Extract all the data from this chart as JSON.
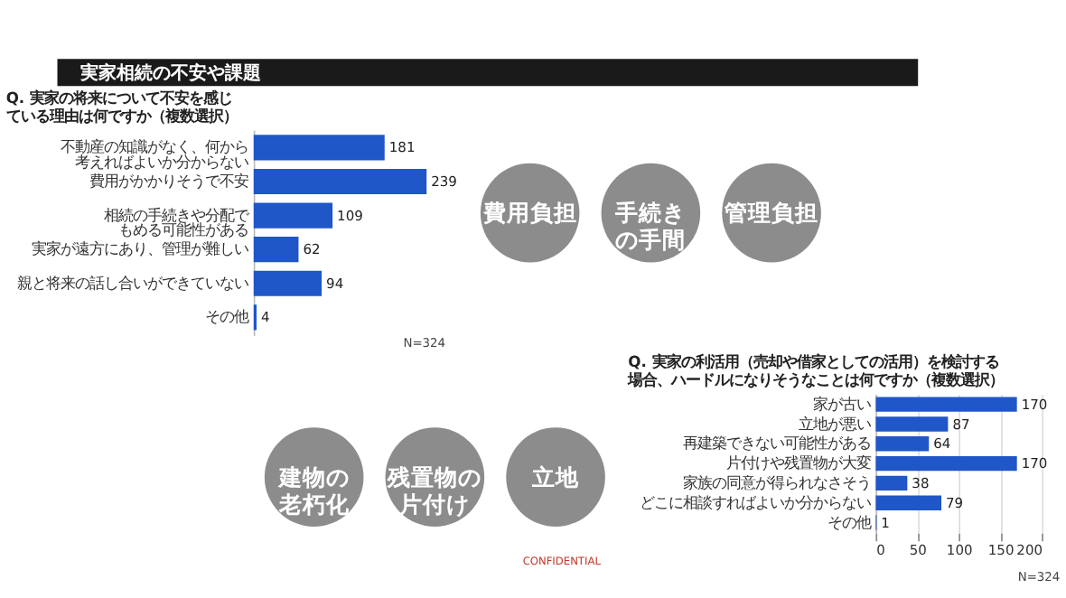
{
  "chart_data": [
    {
      "type": "other",
      "title": "実家相続の不安や課題",
      "annotations": [
        "費用負担",
        "手続きの手間",
        "管理負担",
        "建物の老朽化",
        "残置物の片付け",
        "立地",
        "CONFIDENTIAL"
      ]
    },
    {
      "type": "bar",
      "orientation": "horizontal",
      "title": "Q. 実家の将来について不安を感じている理由は何ですか（複数選択）",
      "categories": [
        "不動産の知識がなく、何から考えればよいか分からない",
        "費用がかかりそうで不安",
        "相続の手続きや分配でもめる可能性がある",
        "実家が遠方にあり、管理が難しい",
        "親と将来の話し合いができていない",
        "その他"
      ],
      "values": [
        181,
        239,
        109,
        62,
        94,
        4
      ],
      "color": "#1f56c8",
      "data_labels": true,
      "tick_labels": "y",
      "annotations": [
        "N=324"
      ]
    },
    {
      "type": "bar",
      "orientation": "horizontal",
      "title": "Q. 実家の利活用（売却や借家としての活用）を検討する場合、ハードルになりそうなことは何ですか（複数選択）",
      "categories": [
        "家が古い",
        "立地が悪い",
        "再建築できない可能性がある",
        "片付けや残置物が大変",
        "家族の同意が得られなさそう",
        "どこに相談すればよいか分からない",
        "その他"
      ],
      "values": [
        170,
        87,
        64,
        170,
        38,
        79,
        1
      ],
      "color": "#1f56c8",
      "data_labels": true,
      "xlim": [
        0,
        200
      ],
      "xticks": [
        0,
        50,
        100,
        150,
        200
      ],
      "grid": "x",
      "annotations": [
        "N=324"
      ]
    }
  ]
}
